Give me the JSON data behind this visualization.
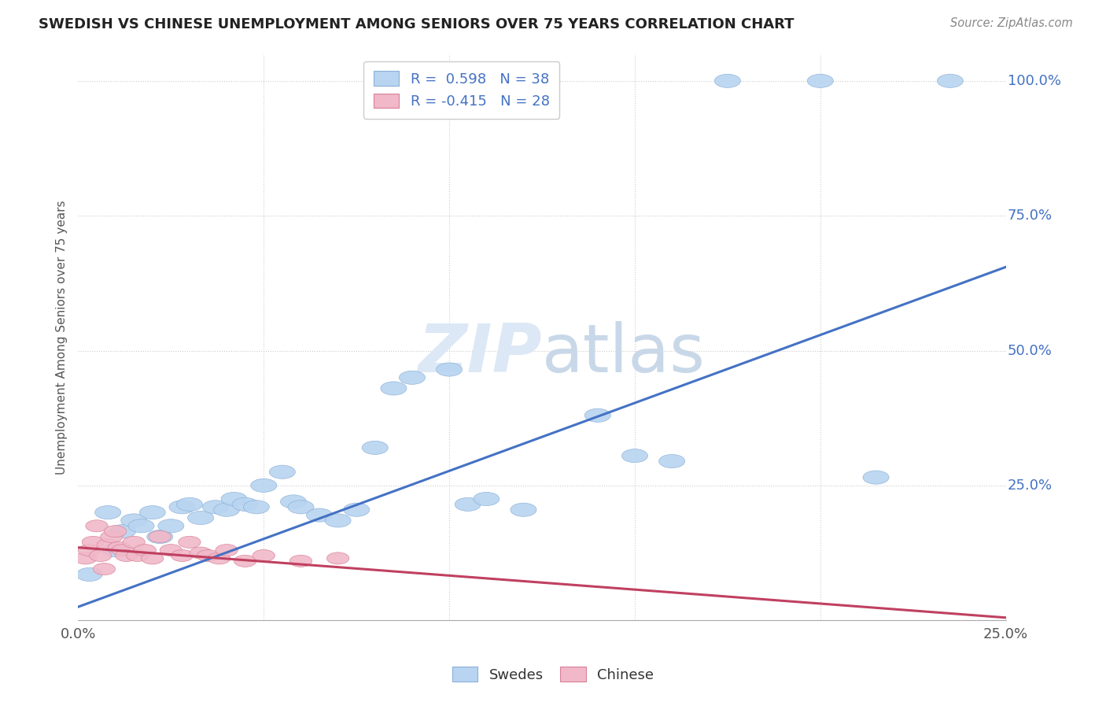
{
  "title": "SWEDISH VS CHINESE UNEMPLOYMENT AMONG SENIORS OVER 75 YEARS CORRELATION CHART",
  "source": "Source: ZipAtlas.com",
  "ylabel": "Unemployment Among Seniors over 75 years",
  "xlim": [
    0.0,
    0.25
  ],
  "ylim": [
    0.0,
    1.05
  ],
  "xticks": [
    0.0,
    0.05,
    0.1,
    0.15,
    0.2,
    0.25
  ],
  "yticks": [
    0.0,
    0.25,
    0.5,
    0.75,
    1.0
  ],
  "xticklabels": [
    "0.0%",
    "",
    "",
    "",
    "",
    "25.0%"
  ],
  "yticklabels": [
    "",
    "25.0%",
    "50.0%",
    "75.0%",
    "100.0%"
  ],
  "swedes_color": "#b8d4f0",
  "swedes_edge_color": "#8ab0d8",
  "chinese_color": "#f0b8c8",
  "chinese_edge_color": "#d88098",
  "line_color_swedes": "#4472c4",
  "line_color_chinese": "#c04060",
  "watermark": "ZIPatlas",
  "legend_text_color": "#4472c4",
  "ytick_color": "#4472c4",
  "xtick_color": "#555555",
  "swedes_x": [
    0.003,
    0.008,
    0.01,
    0.012,
    0.015,
    0.017,
    0.02,
    0.022,
    0.025,
    0.028,
    0.03,
    0.033,
    0.037,
    0.04,
    0.042,
    0.045,
    0.048,
    0.05,
    0.055,
    0.058,
    0.06,
    0.065,
    0.07,
    0.075,
    0.08,
    0.085,
    0.09,
    0.1,
    0.105,
    0.11,
    0.12,
    0.14,
    0.15,
    0.16,
    0.175,
    0.2,
    0.215,
    0.235
  ],
  "swedes_y": [
    0.085,
    0.2,
    0.13,
    0.165,
    0.185,
    0.175,
    0.2,
    0.155,
    0.175,
    0.21,
    0.215,
    0.19,
    0.21,
    0.205,
    0.225,
    0.215,
    0.21,
    0.25,
    0.275,
    0.22,
    0.21,
    0.195,
    0.185,
    0.205,
    0.32,
    0.43,
    0.45,
    0.465,
    0.215,
    0.225,
    0.205,
    0.38,
    0.305,
    0.295,
    1.0,
    1.0,
    0.265,
    1.0
  ],
  "chinese_x": [
    0.002,
    0.003,
    0.004,
    0.005,
    0.006,
    0.007,
    0.008,
    0.009,
    0.01,
    0.011,
    0.012,
    0.013,
    0.015,
    0.016,
    0.018,
    0.02,
    0.022,
    0.025,
    0.028,
    0.03,
    0.033,
    0.035,
    0.038,
    0.04,
    0.045,
    0.05,
    0.06,
    0.07
  ],
  "chinese_y": [
    0.115,
    0.13,
    0.145,
    0.175,
    0.12,
    0.095,
    0.14,
    0.155,
    0.165,
    0.135,
    0.13,
    0.12,
    0.145,
    0.12,
    0.13,
    0.115,
    0.155,
    0.13,
    0.12,
    0.145,
    0.125,
    0.12,
    0.115,
    0.13,
    0.11,
    0.12,
    0.11,
    0.115
  ],
  "swedes_line_x": [
    0.0,
    0.25
  ],
  "swedes_line_y": [
    0.025,
    0.655
  ],
  "chinese_line_x": [
    0.0,
    0.25
  ],
  "chinese_line_y": [
    0.135,
    0.005
  ]
}
